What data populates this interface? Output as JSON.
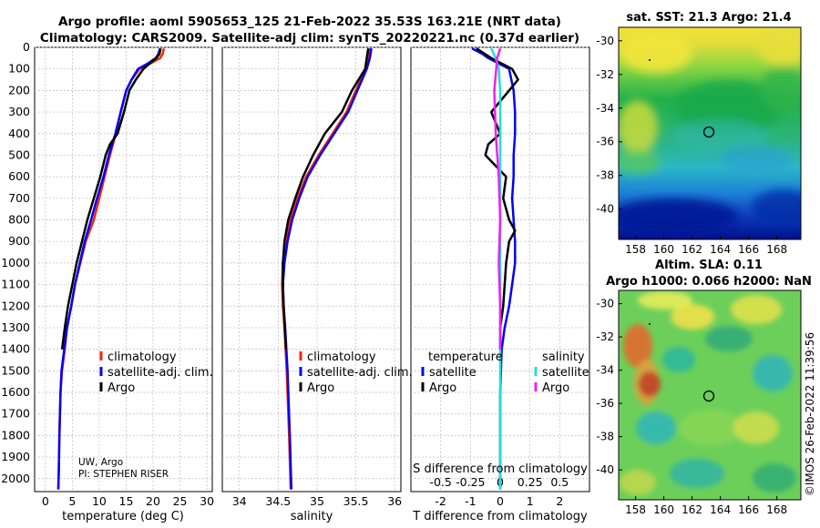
{
  "header": {
    "title_line1": "Argo profile: aoml 5905653_125 21-Feb-2022 35.53S 163.21E (NRT data)",
    "title_line2": "Climatology: CARS2009. Satellite-adj clim: synTS_20220221.nc (0.37d earlier)"
  },
  "footer": {
    "stamp": "©IMOS 26-Feb-2022 11:39:56",
    "credit_line1": "UW, Argo",
    "credit_line2": "PI: STEPHEN RISER"
  },
  "colors": {
    "climatology": "#ff2200",
    "satellite": "#0000ff",
    "argo": "#000000",
    "sal_satellite": "#22dddd",
    "sal_argo": "#ee22ee"
  },
  "legend_profile": {
    "climatology": "climatology",
    "satellite": "satellite-adj. clim.",
    "argo": "Argo"
  },
  "legend_diff": {
    "temperature_header": "temperature",
    "salinity_header": "salinity",
    "satellite": "satellite",
    "argo": "Argo"
  },
  "map_titles": {
    "sst": "sat. SST: 21.3 Argo: 21.4",
    "sla_line1": "Altim. SLA: 0.11",
    "sla_line2": "Argo h1000: 0.066 h2000: NaN"
  },
  "chart_data": [
    {
      "type": "line",
      "name": "temperature",
      "xlabel": "temperature (deg C)",
      "ylabel": "",
      "xlim": [
        -2,
        31
      ],
      "ylim": [
        2060,
        0
      ],
      "xticks": [
        0,
        5,
        10,
        15,
        20,
        25,
        30
      ],
      "yticks": [
        0,
        100,
        200,
        300,
        400,
        500,
        600,
        700,
        800,
        900,
        1000,
        1100,
        1200,
        1300,
        1400,
        1500,
        1600,
        1700,
        1800,
        1900,
        2000
      ],
      "series": [
        {
          "name": "climatology",
          "color": "red",
          "x": [
            22.0,
            21.8,
            21.3,
            19.5,
            17.5,
            16.0,
            15.0,
            14.0,
            13.1,
            12.0,
            11.0,
            10.0,
            9.0,
            7.5,
            6.5,
            5.5,
            4.8,
            4.0,
            3.6,
            3.1,
            2.8,
            2.6,
            2.5,
            2.4
          ],
          "y": [
            5,
            30,
            50,
            75,
            100,
            150,
            200,
            300,
            400,
            500,
            600,
            700,
            800,
            900,
            1000,
            1100,
            1200,
            1300,
            1400,
            1500,
            1600,
            1800,
            1950,
            2050
          ]
        },
        {
          "name": "satellite-adj. clim.",
          "color": "blue",
          "x": [
            21.3,
            21.0,
            20.5,
            19.0,
            17.2,
            16.0,
            15.0,
            14.0,
            13.0,
            11.8,
            10.8,
            9.6,
            8.5,
            7.3,
            6.4,
            5.5,
            4.8,
            4.0,
            3.5,
            3.0,
            2.8,
            2.6,
            2.5,
            2.4
          ],
          "y": [
            5,
            30,
            50,
            75,
            100,
            150,
            200,
            300,
            400,
            500,
            600,
            700,
            800,
            900,
            1000,
            1100,
            1200,
            1300,
            1400,
            1500,
            1600,
            1800,
            1950,
            2050
          ]
        },
        {
          "name": "Argo",
          "color": "black",
          "x": [
            21.4,
            21.2,
            20.6,
            19.6,
            18.2,
            16.8,
            15.6,
            14.6,
            13.4,
            12.0,
            11.2,
            10.2,
            9.0,
            7.8,
            6.8,
            5.8,
            5.0,
            4.2,
            3.6,
            3.1
          ],
          "y": [
            5,
            30,
            50,
            70,
            100,
            150,
            200,
            300,
            400,
            450,
            500,
            600,
            700,
            800,
            900,
            1000,
            1100,
            1200,
            1300,
            1400
          ]
        }
      ]
    },
    {
      "type": "line",
      "name": "salinity",
      "xlabel": "salinity",
      "ylabel": "",
      "xlim": [
        33.78,
        36.08
      ],
      "ylim": [
        2060,
        0
      ],
      "xticks": [
        34,
        34.5,
        35,
        35.5,
        36
      ],
      "yticks": [
        0,
        100,
        200,
        300,
        400,
        500,
        600,
        700,
        800,
        900,
        1000,
        1100,
        1200,
        1300,
        1400,
        1500,
        1600,
        1700,
        1800,
        1900,
        2000
      ],
      "series": [
        {
          "name": "climatology",
          "color": "red",
          "x": [
            35.68,
            35.66,
            35.62,
            35.5,
            35.38,
            35.2,
            35.02,
            34.86,
            34.75,
            34.66,
            34.6,
            34.56,
            34.55,
            34.56,
            34.58,
            34.61,
            34.64,
            34.66
          ],
          "y": [
            5,
            50,
            100,
            200,
            300,
            400,
            500,
            600,
            700,
            800,
            900,
            1000,
            1100,
            1200,
            1300,
            1500,
            1800,
            2050
          ]
        },
        {
          "name": "satellite-adj. clim.",
          "color": "blue",
          "x": [
            35.7,
            35.68,
            35.64,
            35.52,
            35.4,
            35.22,
            35.04,
            34.88,
            34.77,
            34.68,
            34.62,
            34.58,
            34.56,
            34.57,
            34.59,
            34.62,
            34.65,
            34.67
          ],
          "y": [
            5,
            50,
            100,
            200,
            300,
            400,
            500,
            600,
            700,
            800,
            900,
            1000,
            1100,
            1200,
            1300,
            1500,
            1800,
            2050
          ]
        },
        {
          "name": "Argo",
          "color": "black",
          "x": [
            35.66,
            35.64,
            35.62,
            35.45,
            35.32,
            35.1,
            34.95,
            34.82,
            34.72,
            34.63,
            34.58,
            34.56,
            34.56,
            34.57,
            34.6
          ],
          "y": [
            5,
            50,
            100,
            200,
            300,
            400,
            500,
            600,
            700,
            800,
            900,
            1000,
            1100,
            1200,
            1400
          ]
        }
      ]
    },
    {
      "type": "line",
      "name": "difference from climatology",
      "xlabel": "T difference from climatology",
      "xlabel_top": "S difference from climatology",
      "xlim": [
        -3,
        3
      ],
      "ylim": [
        2060,
        0
      ],
      "xticks": [
        -2,
        -1,
        0,
        1,
        2
      ],
      "xtick_labels_top": [
        "-0.5",
        "-0.25",
        "0",
        "0.25",
        "0.5"
      ],
      "series": [
        {
          "name": "T satellite",
          "color": "blue",
          "x": [
            -0.95,
            -0.6,
            -0.4,
            0.3,
            0.45,
            0.5,
            0.5,
            0.45,
            0.45,
            0.4,
            0.45,
            0.5,
            0.5,
            0.4,
            0.3,
            0.15,
            0.05,
            0.0,
            0.0,
            0.0
          ],
          "y": [
            5,
            30,
            50,
            100,
            200,
            300,
            400,
            500,
            600,
            700,
            800,
            900,
            1000,
            1100,
            1200,
            1300,
            1400,
            1600,
            1800,
            2050
          ]
        },
        {
          "name": "T Argo",
          "color": "black",
          "x": [
            -0.8,
            -0.3,
            0.4,
            0.6,
            0.3,
            -0.3,
            0.0,
            -0.4,
            -0.5,
            0.2,
            0.1,
            0.3,
            0.5,
            0.3,
            0.2,
            0.1,
            0.0,
            0.0
          ],
          "y": [
            5,
            50,
            100,
            150,
            200,
            300,
            400,
            450,
            500,
            600,
            700,
            800,
            850,
            900,
            1000,
            1200,
            1300,
            1400
          ]
        },
        {
          "name": "S satellite",
          "color": "cyan",
          "x": [
            -0.3,
            -0.15,
            -0.05,
            0.0,
            0.0,
            0.0,
            0.0,
            0.0,
            0.0,
            0.0
          ],
          "y": [
            5,
            50,
            100,
            200,
            400,
            600,
            800,
            1200,
            1600,
            2050
          ]
        },
        {
          "name": "S Argo",
          "color": "magenta",
          "x": [
            0.0,
            -0.1,
            -0.2,
            -0.15,
            -0.05,
            0.0,
            -0.05,
            0.0,
            0.0,
            0.0
          ],
          "y": [
            5,
            50,
            200,
            400,
            600,
            800,
            1000,
            1200,
            1300,
            1400
          ]
        }
      ]
    },
    {
      "type": "heatmap",
      "name": "satellite SST map",
      "title": "sat. SST: 21.3 Argo: 21.4",
      "xlim": [
        156.8,
        169.7
      ],
      "ylim": [
        -41.8,
        -29.2
      ],
      "xticks": [
        158,
        160,
        162,
        164,
        166,
        168
      ],
      "yticks": [
        -30,
        -32,
        -34,
        -36,
        -38,
        -40
      ],
      "argo_position": {
        "lon": 163.21,
        "lat": -35.53
      }
    },
    {
      "type": "heatmap",
      "name": "altimeter SLA map",
      "title": "Altim. SLA: 0.11 / Argo h1000: 0.066 h2000: NaN",
      "xlim": [
        156.8,
        169.7
      ],
      "ylim": [
        -41.8,
        -29.2
      ],
      "xticks": [
        158,
        160,
        162,
        164,
        166,
        168
      ],
      "yticks": [
        -30,
        -32,
        -34,
        -36,
        -38,
        -40
      ],
      "argo_position": {
        "lon": 163.21,
        "lat": -35.53
      }
    }
  ]
}
